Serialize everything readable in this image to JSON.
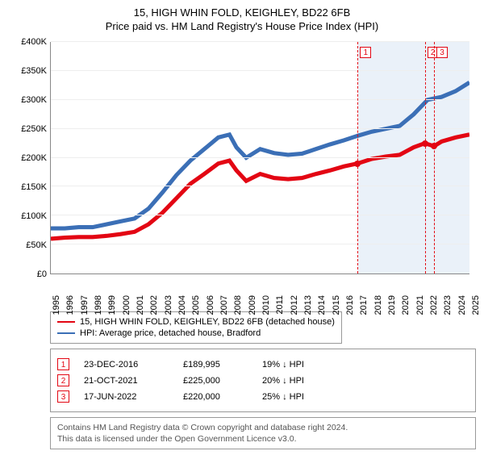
{
  "title_line1": "15, HIGH WHIN FOLD, KEIGHLEY, BD22 6FB",
  "title_line2": "Price paid vs. HM Land Registry's House Price Index (HPI)",
  "chart": {
    "type": "line",
    "y_axis": {
      "min": 0,
      "max": 400000,
      "step": 50000,
      "labels": [
        "£0",
        "£50K",
        "£100K",
        "£150K",
        "£200K",
        "£250K",
        "£300K",
        "£350K",
        "£400K"
      ],
      "label_fontsize": 11
    },
    "x_axis": {
      "min": 1995,
      "max": 2025,
      "labels": [
        "1995",
        "1996",
        "1997",
        "1998",
        "1999",
        "2000",
        "2001",
        "2002",
        "2003",
        "2004",
        "2005",
        "2006",
        "2007",
        "2008",
        "2009",
        "2010",
        "2011",
        "2012",
        "2013",
        "2014",
        "2015",
        "2016",
        "2017",
        "2018",
        "2019",
        "2020",
        "2021",
        "2022",
        "2023",
        "2024",
        "2025"
      ],
      "label_fontsize": 11
    },
    "grid_color": "#eeeeee",
    "background_color": "#ffffff",
    "shaded_region": {
      "from_year": 2017.0,
      "to_year": 2025.3,
      "color": "#eaf1f9"
    },
    "series": [
      {
        "name": "price_paid",
        "color": "#e30613",
        "line_width": 1.6,
        "points": [
          [
            1995,
            60000
          ],
          [
            1996,
            62000
          ],
          [
            1997,
            63000
          ],
          [
            1998,
            63000
          ],
          [
            1999,
            65000
          ],
          [
            2000,
            68000
          ],
          [
            2001,
            72000
          ],
          [
            2002,
            85000
          ],
          [
            2003,
            105000
          ],
          [
            2004,
            130000
          ],
          [
            2005,
            155000
          ],
          [
            2006,
            172000
          ],
          [
            2007,
            190000
          ],
          [
            2007.8,
            195000
          ],
          [
            2008.3,
            178000
          ],
          [
            2009,
            160000
          ],
          [
            2010,
            172000
          ],
          [
            2011,
            165000
          ],
          [
            2012,
            163000
          ],
          [
            2013,
            165000
          ],
          [
            2014,
            172000
          ],
          [
            2015,
            178000
          ],
          [
            2016,
            185000
          ],
          [
            2016.98,
            189995
          ],
          [
            2018,
            198000
          ],
          [
            2019,
            202000
          ],
          [
            2020,
            205000
          ],
          [
            2021,
            218000
          ],
          [
            2021.8,
            225000
          ],
          [
            2022.46,
            220000
          ],
          [
            2023,
            228000
          ],
          [
            2024,
            235000
          ],
          [
            2025,
            240000
          ]
        ]
      },
      {
        "name": "hpi",
        "color": "#3b6fb6",
        "line_width": 1.6,
        "points": [
          [
            1995,
            78000
          ],
          [
            1996,
            78000
          ],
          [
            1997,
            80000
          ],
          [
            1998,
            80000
          ],
          [
            1999,
            85000
          ],
          [
            2000,
            90000
          ],
          [
            2001,
            95000
          ],
          [
            2002,
            112000
          ],
          [
            2003,
            140000
          ],
          [
            2004,
            170000
          ],
          [
            2005,
            195000
          ],
          [
            2006,
            215000
          ],
          [
            2007,
            235000
          ],
          [
            2007.8,
            240000
          ],
          [
            2008.3,
            218000
          ],
          [
            2009,
            200000
          ],
          [
            2010,
            215000
          ],
          [
            2011,
            208000
          ],
          [
            2012,
            205000
          ],
          [
            2013,
            207000
          ],
          [
            2014,
            215000
          ],
          [
            2015,
            223000
          ],
          [
            2016,
            230000
          ],
          [
            2017,
            238000
          ],
          [
            2018,
            245000
          ],
          [
            2019,
            250000
          ],
          [
            2020,
            255000
          ],
          [
            2021,
            275000
          ],
          [
            2022,
            300000
          ],
          [
            2023,
            305000
          ],
          [
            2024,
            315000
          ],
          [
            2025,
            330000
          ]
        ]
      }
    ],
    "sale_markers": [
      {
        "n": "1",
        "year": 2016.98,
        "price": 189995,
        "color": "#e30613"
      },
      {
        "n": "2",
        "year": 2021.8,
        "price": 225000,
        "color": "#e30613"
      },
      {
        "n": "3",
        "year": 2022.46,
        "price": 220000,
        "color": "#e30613"
      }
    ]
  },
  "legend": {
    "items": [
      {
        "color": "#e30613",
        "label": "15, HIGH WHIN FOLD, KEIGHLEY, BD22 6FB (detached house)"
      },
      {
        "color": "#3b6fb6",
        "label": "HPI: Average price, detached house, Bradford"
      }
    ]
  },
  "sales": [
    {
      "n": "1",
      "color": "#e30613",
      "date": "23-DEC-2016",
      "price": "£189,995",
      "diff": "19% ↓ HPI"
    },
    {
      "n": "2",
      "color": "#e30613",
      "date": "21-OCT-2021",
      "price": "£225,000",
      "diff": "20% ↓ HPI"
    },
    {
      "n": "3",
      "color": "#e30613",
      "date": "17-JUN-2022",
      "price": "£220,000",
      "diff": "25% ↓ HPI"
    }
  ],
  "footer_line1": "Contains HM Land Registry data © Crown copyright and database right 2024.",
  "footer_line2": "This data is licensed under the Open Government Licence v3.0."
}
